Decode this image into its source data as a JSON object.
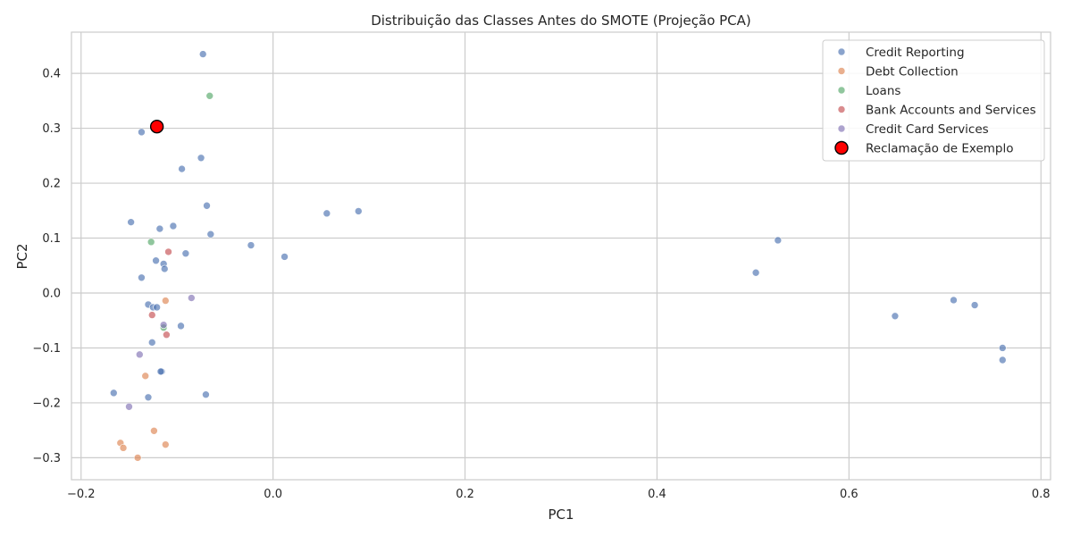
{
  "chart_data": {
    "type": "scatter",
    "title": "Distribuição das Classes Antes do SMOTE (Projeção PCA)",
    "xlabel": "PC1",
    "ylabel": "PC2",
    "xlim": [
      -0.21,
      0.81
    ],
    "ylim": [
      -0.34,
      0.475
    ],
    "grid": true,
    "legend_position": "top-right",
    "x_ticks": [
      {
        "value": -0.2,
        "label": "−0.2"
      },
      {
        "value": 0.0,
        "label": "0.0"
      },
      {
        "value": 0.2,
        "label": "0.2"
      },
      {
        "value": 0.4,
        "label": "0.4"
      },
      {
        "value": 0.6,
        "label": "0.6"
      },
      {
        "value": 0.8,
        "label": "0.8"
      }
    ],
    "y_ticks": [
      {
        "value": -0.3,
        "label": "−0.3"
      },
      {
        "value": -0.2,
        "label": "−0.2"
      },
      {
        "value": -0.1,
        "label": "−0.1"
      },
      {
        "value": 0.0,
        "label": "0.0"
      },
      {
        "value": 0.1,
        "label": "0.1"
      },
      {
        "value": 0.2,
        "label": "0.2"
      },
      {
        "value": 0.3,
        "label": "0.3"
      },
      {
        "value": 0.4,
        "label": "0.4"
      }
    ],
    "series": [
      {
        "name": "Credit Reporting",
        "color": "#4c72b0",
        "points": [
          [
            -0.073,
            0.435
          ],
          [
            -0.137,
            0.293
          ],
          [
            -0.075,
            0.246
          ],
          [
            -0.095,
            0.226
          ],
          [
            -0.069,
            0.159
          ],
          [
            -0.148,
            0.129
          ],
          [
            -0.118,
            0.117
          ],
          [
            -0.104,
            0.122
          ],
          [
            -0.065,
            0.107
          ],
          [
            -0.023,
            0.087
          ],
          [
            0.012,
            0.066
          ],
          [
            0.056,
            0.145
          ],
          [
            0.089,
            0.149
          ],
          [
            -0.091,
            0.072
          ],
          [
            -0.122,
            0.059
          ],
          [
            -0.114,
            0.053
          ],
          [
            -0.113,
            0.044
          ],
          [
            -0.137,
            0.028
          ],
          [
            -0.13,
            -0.021
          ],
          [
            -0.125,
            -0.026
          ],
          [
            -0.121,
            -0.026
          ],
          [
            -0.096,
            -0.06
          ],
          [
            -0.126,
            -0.09
          ],
          [
            -0.116,
            -0.143
          ],
          [
            -0.117,
            -0.143
          ],
          [
            -0.166,
            -0.182
          ],
          [
            -0.13,
            -0.19
          ],
          [
            -0.07,
            -0.185
          ],
          [
            0.526,
            0.096
          ],
          [
            0.503,
            0.037
          ],
          [
            0.648,
            -0.042
          ],
          [
            0.709,
            -0.013
          ],
          [
            0.731,
            -0.022
          ],
          [
            0.76,
            -0.1
          ],
          [
            0.76,
            -0.122
          ]
        ]
      },
      {
        "name": "Debt Collection",
        "color": "#dd8452",
        "points": [
          [
            -0.112,
            -0.014
          ],
          [
            -0.133,
            -0.151
          ],
          [
            -0.124,
            -0.251
          ],
          [
            -0.112,
            -0.276
          ],
          [
            -0.159,
            -0.273
          ],
          [
            -0.156,
            -0.282
          ],
          [
            -0.141,
            -0.3
          ]
        ]
      },
      {
        "name": "Loans",
        "color": "#55a868",
        "points": [
          [
            -0.066,
            0.359
          ],
          [
            -0.127,
            0.093
          ],
          [
            -0.114,
            -0.063
          ]
        ]
      },
      {
        "name": "Bank Accounts and Services",
        "color": "#c44e52",
        "points": [
          [
            -0.109,
            0.075
          ],
          [
            -0.126,
            -0.04
          ],
          [
            -0.111,
            -0.076
          ]
        ]
      },
      {
        "name": "Credit Card Services",
        "color": "#8172b3",
        "points": [
          [
            -0.085,
            -0.009
          ],
          [
            -0.114,
            -0.058
          ],
          [
            -0.139,
            -0.112
          ],
          [
            -0.15,
            -0.207
          ]
        ]
      }
    ],
    "highlight": {
      "name": "Reclamação de Exemplo",
      "color": "#ff0000",
      "edge_color": "#000000",
      "point": [
        -0.121,
        0.303
      ]
    }
  }
}
